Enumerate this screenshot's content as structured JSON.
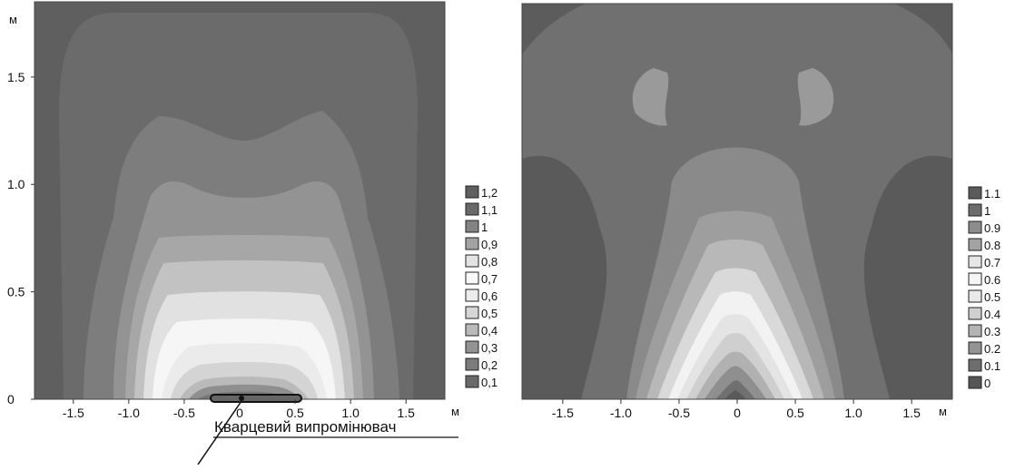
{
  "chart_data": [
    {
      "type": "heatmap",
      "title": "",
      "x_unit": "м",
      "y_unit": "м",
      "xlim": [
        -1.85,
        1.85
      ],
      "ylim": [
        0,
        1.85
      ],
      "x_ticks": [
        -1.5,
        -1.0,
        -0.5,
        0,
        0.5,
        1.0,
        1.5
      ],
      "x_tick_labels": [
        "-1.5",
        "-1.0",
        "-0.5",
        "0",
        "0.5",
        "1.0",
        "1.5"
      ],
      "y_ticks": [
        0,
        0.5,
        1.0,
        1.5
      ],
      "y_tick_labels": [
        "0",
        "0.5",
        "1.0",
        "1.5"
      ],
      "legend_position": "right",
      "legend_levels": [
        "1,2",
        "1,1",
        "1",
        "0,9",
        "0,8",
        "0,7",
        "0,6",
        "0,5",
        "0,4",
        "0,3",
        "0,2",
        "0,1"
      ],
      "legend_colors": [
        "#5f5f5f",
        "#696969",
        "#838383",
        "#a2a2a2",
        "#e3e3e3",
        "#f8f8f8",
        "#ececec",
        "#d6d6d6",
        "#bababa",
        "#939393",
        "#7b7b7b",
        "#6a6a6a"
      ],
      "annotation": "Кварцевий випромінювач"
    },
    {
      "type": "heatmap",
      "title": "",
      "x_unit": "м",
      "xlim": [
        -1.85,
        1.85
      ],
      "ylim": [
        0,
        1.85
      ],
      "x_ticks": [
        -1.5,
        -1.0,
        -0.5,
        0,
        0.5,
        1.0,
        1.5
      ],
      "x_tick_labels": [
        "-1.5",
        "-1.0",
        "-0.5",
        "0",
        "0.5",
        "1.0",
        "1.5"
      ],
      "legend_position": "right",
      "legend_levels": [
        "1.1",
        "1",
        "0.9",
        "0.8",
        "0.7",
        "0.6",
        "0.5",
        "0.4",
        "0.3",
        "0.2",
        "0.1",
        "0"
      ],
      "legend_colors": [
        "#5b5b5b",
        "#6c6c6c",
        "#8c8c8c",
        "#a3a3a3",
        "#e6e6e6",
        "#f5f5f5",
        "#e8e8e8",
        "#d0d0d0",
        "#b4b4b4",
        "#939393",
        "#6e6e6e",
        "#555555"
      ]
    }
  ]
}
